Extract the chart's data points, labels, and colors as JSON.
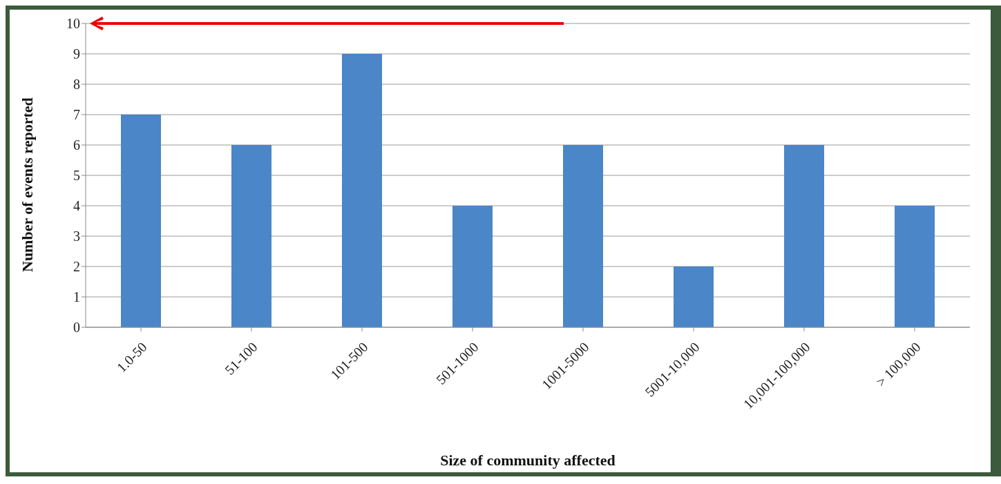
{
  "chart_data": {
    "type": "bar",
    "xlabel": "Size of community affected",
    "ylabel": "Number of events reported",
    "categories": [
      "1.0-50",
      "51-100",
      "101-500",
      "501-1000",
      "1001-5000",
      "5001-10,000",
      "10,001-100,000",
      "> 100,000"
    ],
    "values": [
      7,
      6,
      9,
      4,
      6,
      2,
      6,
      4
    ],
    "color": "#4a86c8",
    "ylim": [
      0,
      10
    ],
    "yticks": [
      0,
      1,
      2,
      3,
      4,
      5,
      6,
      7,
      8,
      9,
      10
    ],
    "grid": "y"
  }
}
